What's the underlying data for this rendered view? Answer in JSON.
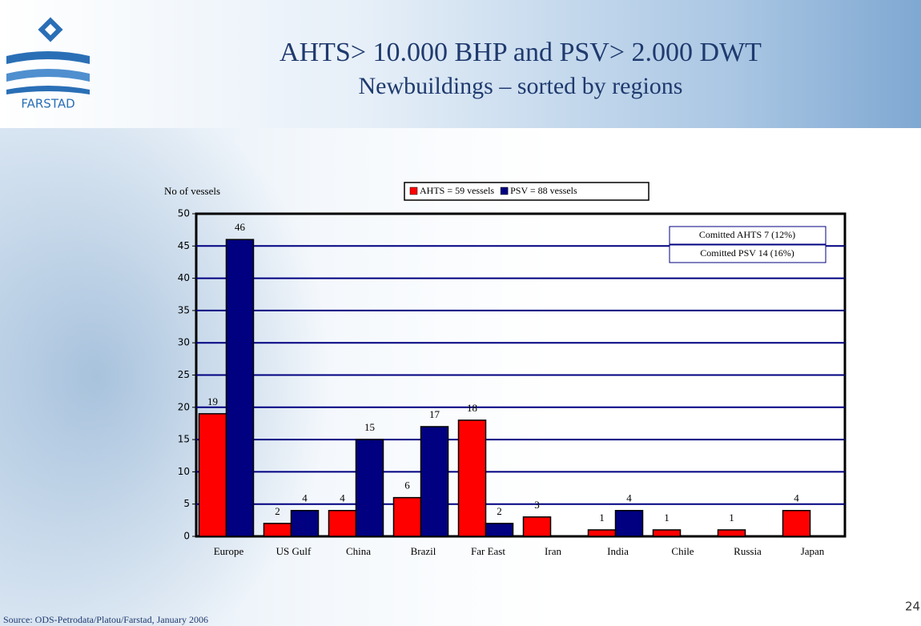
{
  "logo": "FARSTAD",
  "source": "Source: ODS-Petrodata/Platou/Farstad, January 2006",
  "page_number": "24",
  "chart_data": {
    "type": "bar",
    "title": "AHTS> 10.000 BHP and PSV> 2.000 DWT",
    "subtitle": "Newbuildings – sorted by regions",
    "y_label": "No of vessels",
    "categories": [
      "Europe",
      "US Gulf",
      "China",
      "Brazil",
      "Far East",
      "Iran",
      "India",
      "Chile",
      "Russia",
      "Japan"
    ],
    "series": [
      {
        "name": "AHTS = 59 vessels",
        "color": "#ff0000",
        "values": [
          19,
          2,
          4,
          6,
          18,
          3,
          1,
          1,
          1,
          4
        ]
      },
      {
        "name": "PSV = 88 vessels",
        "color": "#000080",
        "values": [
          46,
          4,
          15,
          17,
          2,
          null,
          4,
          null,
          null,
          null
        ]
      }
    ],
    "annotations": [
      "Comitted AHTS 7 (12%)",
      "Comitted PSV  14 (16%)"
    ],
    "ylim": [
      0,
      50
    ],
    "yticks": [
      0,
      5,
      10,
      15,
      20,
      25,
      30,
      35,
      40,
      45,
      50
    ],
    "grid": true,
    "grid_color": "#000080"
  }
}
